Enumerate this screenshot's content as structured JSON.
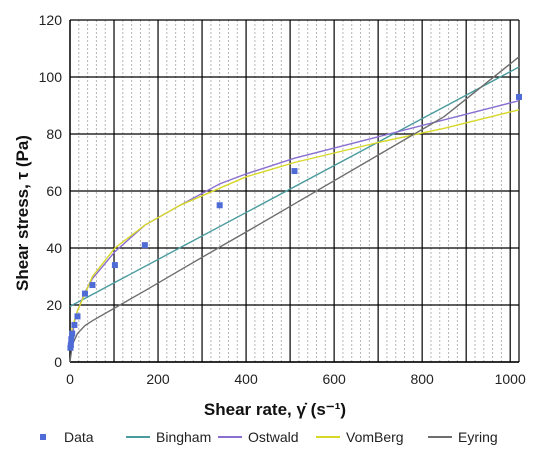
{
  "chart_data": {
    "type": "scatter",
    "xlabel": "Shear rate, γ̇ (s⁻¹)",
    "ylabel": "Shear stress, τ (Pa)",
    "xlim": [
      0,
      1020
    ],
    "ylim": [
      0,
      120
    ],
    "xticks": [
      0,
      200,
      400,
      600,
      800,
      1000
    ],
    "yticks": [
      0,
      20,
      40,
      60,
      80,
      100,
      120
    ],
    "grid": true,
    "minor_grid": "dashed vertical",
    "legend_position": "bottom",
    "series": [
      {
        "name": "Data",
        "kind": "points",
        "color": "#4f6bd6",
        "x": [
          1,
          2,
          3,
          5,
          10,
          17,
          34,
          51,
          102,
          170,
          340,
          510,
          1020
        ],
        "y": [
          5,
          6,
          8,
          10,
          13,
          16,
          24,
          27,
          34,
          41,
          55,
          67,
          93
        ]
      },
      {
        "name": "Bingham",
        "kind": "line",
        "color": "#4a9b9e",
        "x": [
          0,
          1020
        ],
        "y": [
          19.5,
          103.5
        ]
      },
      {
        "name": "Ostwald",
        "kind": "line",
        "color": "#8a6fd1",
        "x": [
          1,
          10,
          17,
          34,
          51,
          102,
          170,
          250,
          340,
          400,
          510,
          700,
          850,
          1020
        ],
        "y": [
          4.2,
          14,
          18,
          24.5,
          29.3,
          38.7,
          48,
          55,
          62.5,
          66,
          71.5,
          79,
          85,
          91.7
        ]
      },
      {
        "name": "VomBerg",
        "kind": "line",
        "color": "#d8d82a",
        "x": [
          0,
          5,
          17,
          34,
          51,
          102,
          170,
          250,
          340,
          400,
          510,
          700,
          850,
          1020
        ],
        "y": [
          5,
          12,
          18,
          24,
          30,
          40,
          48,
          55,
          61,
          65,
          70,
          77,
          82,
          88.5
        ]
      },
      {
        "name": "Eyring",
        "kind": "line",
        "color": "#6e6e6e",
        "x": [
          0,
          5,
          17,
          34,
          51,
          102,
          170,
          250,
          340,
          400,
          510,
          700,
          850,
          1020
        ],
        "y": [
          0,
          6,
          10,
          12.8,
          14.5,
          19,
          25,
          32.2,
          40.3,
          45.6,
          55.5,
          72.6,
          86.1,
          107.1
        ]
      }
    ]
  }
}
